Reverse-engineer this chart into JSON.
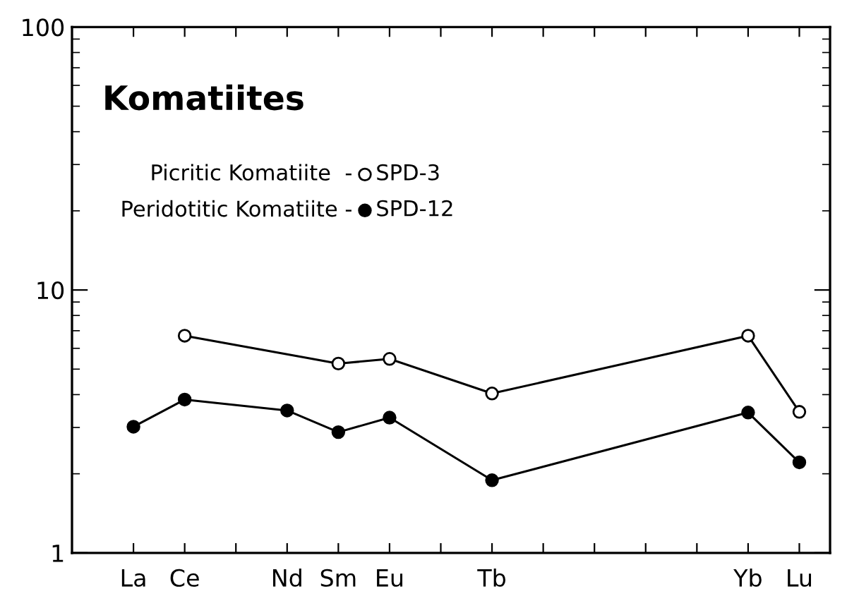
{
  "chart_data": {
    "type": "line",
    "title": "Komatiites",
    "categories": [
      "La",
      "Ce",
      null,
      "Nd",
      "Sm",
      "Eu",
      null,
      "Tb",
      null,
      null,
      null,
      null,
      "Yb",
      "Lu"
    ],
    "series": [
      {
        "name": "SPD-3",
        "color": "#000000",
        "marker": "open circle",
        "values": [
          null,
          6.7,
          null,
          null,
          5.25,
          5.47,
          null,
          4.04,
          null,
          null,
          null,
          null,
          6.7,
          3.44
        ]
      },
      {
        "name": "SPD-12",
        "color": "#000000",
        "marker": "circle",
        "values": [
          3.02,
          3.83,
          null,
          3.48,
          2.88,
          3.27,
          null,
          1.89,
          null,
          null,
          null,
          null,
          3.42,
          2.21
        ]
      }
    ],
    "annotations": [
      "Picritic Komatiite  -",
      "Peridotitic Komatiite -"
    ],
    "log": "y",
    "ylim": [
      1,
      100
    ],
    "yticks": [
      1,
      10,
      100
    ],
    "grid": false,
    "legend": "top left"
  }
}
